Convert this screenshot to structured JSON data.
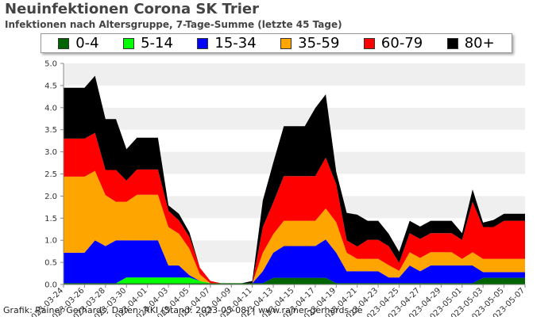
{
  "header": {
    "title": "Neuinfektionen Corona SK Trier",
    "subtitle": "Infektionen nach Altersgruppe, 7-Tage-Summe (letzte 45 Tage)"
  },
  "footer": {
    "credit": "Grafik: Rainer Gerhards, Daten: RKI (Stand: 2023-05-08) | www.rainer-gerhards.de"
  },
  "chart_data": {
    "type": "area",
    "stacked": true,
    "ylim": [
      0,
      5
    ],
    "yticks": [
      "0.0",
      "0.5",
      "1.0",
      "1.5",
      "2.0",
      "2.5",
      "3.0",
      "3.5",
      "4.0",
      "4.5",
      "5.0"
    ],
    "grid": true,
    "legend_position": "top",
    "x": [
      "2023-03-24",
      "2023-03-25",
      "2023-03-26",
      "2023-03-27",
      "2023-03-28",
      "2023-03-29",
      "2023-03-30",
      "2023-03-31",
      "2023-04-01",
      "2023-04-02",
      "2023-04-03",
      "2023-04-04",
      "2023-04-05",
      "2023-04-06",
      "2023-04-07",
      "2023-04-08",
      "2023-04-09",
      "2023-04-10",
      "2023-04-11",
      "2023-04-12",
      "2023-04-13",
      "2023-04-14",
      "2023-04-15",
      "2023-04-16",
      "2023-04-17",
      "2023-04-18",
      "2023-04-19",
      "2023-04-20",
      "2023-04-21",
      "2023-04-22",
      "2023-04-23",
      "2023-04-24",
      "2023-04-25",
      "2023-04-26",
      "2023-04-27",
      "2023-04-28",
      "2023-04-29",
      "2023-04-30",
      "2023-05-01",
      "2023-05-02",
      "2023-05-03",
      "2023-05-04",
      "2023-05-05",
      "2023-05-06",
      "2023-05-07"
    ],
    "x_tick_labels": [
      "2023-03-24",
      "2023-03-26",
      "2023-03-28",
      "2023-03-30",
      "2023-04-01",
      "2023-04-03",
      "2023-04-05",
      "2023-04-07",
      "2023-04-09",
      "2023-04-11",
      "2023-04-13",
      "2023-04-15",
      "2023-04-17",
      "2023-04-19",
      "2023-04-21",
      "2023-04-23",
      "2023-04-25",
      "2023-04-27",
      "2023-04-29",
      "2023-05-01",
      "2023-05-03",
      "2023-05-05",
      "2023-05-07"
    ],
    "series": [
      {
        "name": "0-4",
        "color": "#006400",
        "values": [
          0.03,
          0.03,
          0.03,
          0.03,
          0.03,
          0.03,
          0.03,
          0.03,
          0.03,
          0.03,
          0.03,
          0.03,
          0.03,
          0.03,
          0.03,
          0.03,
          0.03,
          0.03,
          0.03,
          0.03,
          0.15,
          0.15,
          0.15,
          0.15,
          0.15,
          0.15,
          0.03,
          0.03,
          0.03,
          0.03,
          0.03,
          0.03,
          0.03,
          0.03,
          0.03,
          0.03,
          0.03,
          0.03,
          0.03,
          0.03,
          0.15,
          0.15,
          0.15,
          0.15,
          0.15
        ]
      },
      {
        "name": "5-14",
        "color": "#00ff00",
        "values": [
          0,
          0,
          0,
          0,
          0,
          0,
          0.13,
          0.13,
          0.13,
          0.13,
          0.13,
          0.13,
          0.13,
          0.05,
          0,
          0,
          0,
          0,
          0,
          0,
          0,
          0,
          0,
          0,
          0,
          0,
          0,
          0,
          0,
          0,
          0,
          0,
          0,
          0,
          0,
          0,
          0,
          0,
          0,
          0,
          0,
          0,
          0,
          0,
          0
        ]
      },
      {
        "name": "15-34",
        "color": "#0000ff",
        "values": [
          0.69,
          0.69,
          0.69,
          0.97,
          0.84,
          0.97,
          0.84,
          0.84,
          0.84,
          0.84,
          0.27,
          0.27,
          0.05,
          0,
          0,
          0,
          0,
          0,
          0,
          0.27,
          0.57,
          0.72,
          0.72,
          0.72,
          0.72,
          0.87,
          0.69,
          0.27,
          0.27,
          0.27,
          0.27,
          0.13,
          0.13,
          0.4,
          0.27,
          0.4,
          0.4,
          0.4,
          0.4,
          0.4,
          0.13,
          0.13,
          0.13,
          0.13,
          0.13
        ]
      },
      {
        "name": "35-59",
        "color": "#ffa500",
        "values": [
          1.72,
          1.72,
          1.72,
          1.57,
          1.15,
          0.87,
          0.87,
          1.03,
          1.03,
          1.03,
          0.87,
          0.72,
          0.6,
          0.15,
          0,
          0,
          0,
          0,
          0,
          0.42,
          0.42,
          0.57,
          0.57,
          0.57,
          0.57,
          0.7,
          0.69,
          0.42,
          0.28,
          0.28,
          0.28,
          0.28,
          0.15,
          0.3,
          0.3,
          0.3,
          0.3,
          0.3,
          0.15,
          0.3,
          0.3,
          0.3,
          0.3,
          0.3,
          0.3
        ]
      },
      {
        "name": "60-79",
        "color": "#ff0000",
        "values": [
          0.86,
          0.86,
          0.86,
          0.86,
          0.57,
          0.72,
          0.48,
          0.57,
          0.57,
          0.57,
          0.37,
          0.3,
          0.27,
          0.15,
          0.05,
          0,
          0,
          0,
          0,
          0.58,
          0.72,
          1.01,
          1.01,
          1.01,
          1.01,
          1.15,
          0.86,
          0.28,
          0.28,
          0.43,
          0.43,
          0.43,
          0.18,
          0.43,
          0.43,
          0.43,
          0.43,
          0.43,
          0.43,
          1.14,
          0.72,
          0.72,
          0.86,
          0.86,
          0.86
        ]
      },
      {
        "name": "80+",
        "color": "#000000",
        "values": [
          1.15,
          1.15,
          1.15,
          1.29,
          1.15,
          1.15,
          0.71,
          0.72,
          0.72,
          0.72,
          0.12,
          0.15,
          0.1,
          0,
          0,
          0,
          0,
          0,
          0.05,
          0.6,
          0.9,
          1.13,
          1.13,
          1.13,
          1.54,
          1.43,
          0.28,
          0.62,
          0.72,
          0.43,
          0.43,
          0.28,
          0.25,
          0.28,
          0.28,
          0.28,
          0.28,
          0.28,
          0.15,
          0.28,
          0.1,
          0.16,
          0.16,
          0.16,
          0.16
        ]
      }
    ]
  }
}
